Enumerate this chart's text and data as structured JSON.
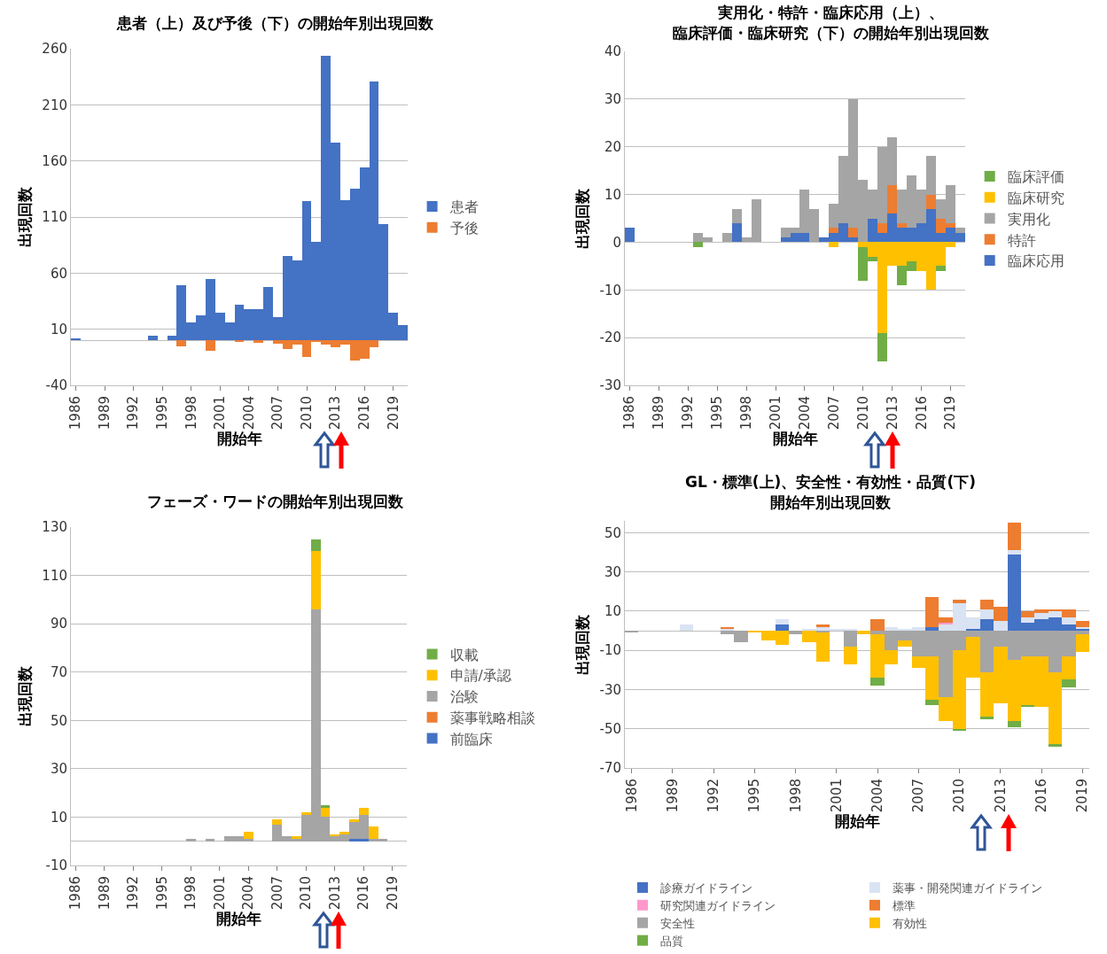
{
  "chart_data": [
    {
      "type": "bar",
      "title": "患者（上）及び予後（下）の開始年別出現回数",
      "xlabel": "開始年",
      "ylabel": "出現回数",
      "stacked": true,
      "grid": "y",
      "legend": "right",
      "categories": [
        "1986",
        null,
        null,
        "1989",
        null,
        null,
        "1992",
        null,
        null,
        "1995",
        null,
        null,
        "1998",
        null,
        null,
        "2001",
        null,
        null,
        "2004",
        null,
        null,
        "2007",
        null,
        null,
        "2010",
        null,
        null,
        "2013",
        null,
        null,
        "2016",
        null,
        null,
        "2019",
        null
      ],
      "ylim": [
        -40,
        260
      ],
      "yticks": [
        -40,
        10,
        60,
        110,
        160,
        210,
        260
      ],
      "series": [
        {
          "name": "予後",
          "color": "#ed7d31",
          "values": [
            0,
            0,
            0,
            0,
            0,
            0,
            0,
            0,
            0,
            0,
            0,
            -5,
            0,
            0,
            -9,
            0,
            0,
            -1,
            0,
            -2,
            0,
            -3,
            -8,
            -4,
            -15,
            -1,
            -4,
            -6,
            -4,
            -18,
            -16,
            -6,
            0,
            0,
            0
          ]
        },
        {
          "name": "患者",
          "color": "#4472c4",
          "values": [
            2,
            0,
            0,
            0,
            0,
            0,
            0,
            0,
            4,
            0,
            4,
            49,
            16,
            22,
            55,
            25,
            16,
            32,
            28,
            28,
            48,
            21,
            75,
            71,
            124,
            88,
            254,
            176,
            125,
            135,
            154,
            231,
            104,
            25,
            14
          ]
        }
      ]
    },
    {
      "type": "bar",
      "title": "実用化・特許・臨床応用（上）、臨床評価・臨床研究（下）の開始年別出現回数",
      "xlabel": "開始年",
      "ylabel": "出現回数",
      "stacked": true,
      "grid": "y",
      "legend": "right",
      "categories": [
        "1986",
        null,
        null,
        "1989",
        null,
        null,
        "1992",
        null,
        null,
        "1995",
        null,
        null,
        "1998",
        null,
        null,
        "2001",
        null,
        null,
        "2004",
        null,
        null,
        "2007",
        null,
        null,
        "2010",
        null,
        null,
        "2013",
        null,
        null,
        "2016",
        null,
        null,
        "2019",
        null
      ],
      "ylim": [
        -30,
        40
      ],
      "yticks": [
        -30,
        -20,
        -10,
        0,
        10,
        20,
        30,
        40
      ],
      "series": [
        {
          "name": "臨床応用",
          "color": "#4472c4",
          "values": [
            3,
            0,
            0,
            0,
            0,
            0,
            0,
            0,
            0,
            0,
            0,
            4,
            0,
            0,
            0,
            0,
            1,
            2,
            2,
            0,
            1,
            2,
            4,
            1,
            0,
            5,
            2,
            6,
            3,
            3,
            4,
            7,
            2,
            3,
            2
          ]
        },
        {
          "name": "特許",
          "color": "#ed7d31",
          "values": [
            0,
            0,
            0,
            0,
            0,
            0,
            0,
            0,
            0,
            0,
            0,
            0,
            0,
            0,
            0,
            0,
            0,
            0,
            0,
            0,
            0,
            1,
            0,
            2,
            0,
            0,
            2,
            6,
            1,
            0,
            0,
            3,
            3,
            1,
            0
          ]
        },
        {
          "name": "実用化",
          "color": "#a5a5a5",
          "values": [
            0,
            0,
            0,
            0,
            0,
            0,
            0,
            2,
            1,
            0,
            2,
            3,
            1,
            9,
            0,
            0,
            2,
            1,
            9,
            7,
            0,
            5,
            14,
            27,
            13,
            6,
            16,
            10,
            7,
            11,
            7,
            8,
            4,
            8,
            1
          ]
        },
        {
          "name": "臨床研究",
          "color": "#ffc000",
          "values": [
            0,
            0,
            0,
            0,
            0,
            0,
            0,
            0,
            0,
            0,
            0,
            0,
            0,
            0,
            0,
            0,
            0,
            0,
            0,
            0,
            0,
            -1,
            0,
            0,
            -1,
            -3,
            -19,
            -5,
            -5,
            -4,
            -6,
            -10,
            -5,
            -1,
            0
          ]
        },
        {
          "name": "臨床評価",
          "color": "#70ad47",
          "values": [
            0,
            0,
            0,
            0,
            0,
            0,
            0,
            -1,
            0,
            0,
            0,
            0,
            0,
            0,
            0,
            0,
            0,
            0,
            0,
            0,
            0,
            0,
            0,
            0,
            -7,
            -1,
            -6,
            0,
            -4,
            -2,
            0,
            0,
            -1,
            0,
            0
          ]
        }
      ]
    },
    {
      "type": "bar",
      "title": "フェーズ・ワードの開始年別出現回数",
      "xlabel": "開始年",
      "ylabel": "出現回数",
      "stacked": true,
      "grid": "y",
      "legend": "right",
      "categories": [
        "1986",
        null,
        null,
        "1989",
        null,
        null,
        "1992",
        null,
        null,
        "1995",
        null,
        null,
        "1998",
        null,
        null,
        "2001",
        null,
        null,
        "2004",
        null,
        null,
        "2007",
        null,
        null,
        "2010",
        null,
        null,
        "2013",
        null,
        null,
        "2016",
        null,
        null,
        "2019",
        null
      ],
      "ylim": [
        -10,
        130
      ],
      "yticks": [
        -10,
        10,
        30,
        50,
        70,
        90,
        110,
        130
      ],
      "series": [
        {
          "name": "前臨床",
          "color": "#4472c4",
          "values": [
            0,
            0,
            0,
            0,
            0,
            0,
            0,
            0,
            0,
            0,
            0,
            0,
            0,
            0,
            0,
            0,
            0,
            0,
            0,
            0,
            0,
            0,
            0,
            0,
            0,
            0,
            0,
            0,
            0,
            1,
            1,
            0,
            0,
            0,
            0
          ]
        },
        {
          "name": "薬事戦略相談",
          "color": "#ed7d31",
          "values": [
            0,
            0,
            0,
            0,
            0,
            0,
            0,
            0,
            0,
            0,
            0,
            0,
            0,
            0,
            0,
            0,
            0,
            0,
            0,
            0,
            0,
            0,
            0,
            0,
            0,
            0,
            0,
            0,
            0,
            0,
            0,
            0,
            0,
            0,
            0
          ]
        },
        {
          "name": "治験",
          "color": "#a5a5a5",
          "values": [
            0,
            0,
            0,
            0,
            0,
            0,
            0,
            0,
            0,
            0,
            0,
            0,
            1,
            0,
            1,
            0,
            2,
            2,
            1,
            0,
            0,
            7,
            2,
            1,
            11,
            96,
            10,
            2,
            3,
            7,
            10,
            1,
            1,
            0,
            0
          ]
        },
        {
          "name": "申請/承認",
          "color": "#ffc000",
          "values": [
            0,
            0,
            0,
            0,
            0,
            0,
            0,
            0,
            0,
            0,
            0,
            0,
            0,
            0,
            0,
            0,
            0,
            0,
            3,
            0,
            0,
            2,
            0,
            1,
            1,
            24,
            4,
            1,
            1,
            1,
            3,
            5,
            0,
            0,
            0
          ]
        },
        {
          "name": "収載",
          "color": "#70ad47",
          "values": [
            0,
            0,
            0,
            0,
            0,
            0,
            0,
            0,
            0,
            0,
            0,
            0,
            0,
            0,
            0,
            0,
            0,
            0,
            0,
            0,
            0,
            0,
            0,
            0,
            0,
            5,
            1,
            0,
            0,
            0,
            0,
            0,
            0,
            0,
            0
          ]
        }
      ]
    },
    {
      "type": "bar",
      "title": "GL・標準(上)、安全性・有効性・品質(下)開始年別出現回数",
      "xlabel": "開始年",
      "ylabel": "出現回数",
      "stacked": true,
      "grid": "y",
      "legend": "bottom",
      "categories": [
        "1986",
        null,
        null,
        "1989",
        null,
        null,
        "1992",
        null,
        null,
        "1995",
        null,
        null,
        "1998",
        null,
        null,
        "2001",
        null,
        null,
        "2004",
        null,
        null,
        "2007",
        null,
        null,
        "2010",
        null,
        null,
        "2013",
        null,
        null,
        "2016",
        null,
        null,
        "2019"
      ],
      "ylim": [
        -70,
        56
      ],
      "yticks": [
        -70,
        -50,
        -30,
        -10,
        10,
        30,
        50
      ],
      "series": [
        {
          "name": "診療ガイドライン",
          "color": "#4472c4",
          "values": [
            0,
            0,
            0,
            0,
            0,
            0,
            0,
            0,
            0,
            0,
            0,
            3,
            0,
            0,
            0,
            0,
            0,
            0,
            0,
            0,
            0,
            0,
            2,
            0,
            0,
            1,
            6,
            0,
            39,
            4,
            6,
            7,
            3,
            1
          ]
        },
        {
          "name": "薬事・開発関連ガイドライン",
          "color": "#dae3f3",
          "values": [
            0,
            0,
            0,
            0,
            3,
            0,
            0,
            1,
            0,
            0,
            0,
            3,
            0,
            1,
            2,
            1,
            1,
            0,
            0,
            2,
            1,
            2,
            0,
            3,
            14,
            6,
            5,
            5,
            2,
            3,
            3,
            3,
            4,
            1
          ]
        },
        {
          "name": "研究関連ガイドライン",
          "color": "#ff99cc",
          "values": [
            0,
            0,
            0,
            0,
            0,
            0,
            0,
            0,
            0,
            0,
            0,
            0,
            0,
            0,
            0,
            0,
            0,
            0,
            0,
            0,
            0,
            0,
            0,
            1,
            0,
            0,
            0,
            0,
            0,
            0,
            0,
            0,
            0,
            0
          ]
        },
        {
          "name": "標準",
          "color": "#ed7d31",
          "values": [
            0,
            0,
            0,
            0,
            0,
            0,
            0,
            1,
            0,
            0,
            0,
            0,
            0,
            0,
            1,
            0,
            0,
            0,
            6,
            0,
            0,
            0,
            15,
            3,
            2,
            0,
            5,
            7,
            14,
            3,
            2,
            1,
            4,
            3
          ]
        },
        {
          "name": "安全性",
          "color": "#a5a5a5",
          "values": [
            -1,
            0,
            0,
            0,
            0,
            0,
            0,
            -2,
            -6,
            0,
            0,
            0,
            -2,
            0,
            -1,
            0,
            -8,
            0,
            -2,
            -10,
            -5,
            -13,
            -13,
            -34,
            -10,
            -3,
            -21,
            -8,
            -15,
            -13,
            -13,
            -21,
            -13,
            -2
          ]
        },
        {
          "name": "有効性",
          "color": "#ffc000",
          "values": [
            0,
            0,
            0,
            0,
            0,
            0,
            0,
            0,
            0,
            -1,
            -5,
            -7,
            0,
            -6,
            -15,
            0,
            -9,
            -2,
            -22,
            -7,
            -3,
            -6,
            -22,
            -12,
            -40,
            -21,
            -23,
            -29,
            -31,
            -25,
            -26,
            -37,
            -12,
            -9
          ]
        },
        {
          "name": "品質",
          "color": "#70ad47",
          "values": [
            0,
            0,
            0,
            0,
            0,
            0,
            0,
            0,
            0,
            0,
            0,
            0,
            0,
            0,
            0,
            0,
            0,
            0,
            -4,
            0,
            0,
            0,
            -3,
            0,
            -1,
            0,
            -1,
            0,
            -3,
            -1,
            0,
            -1,
            -4,
            0
          ]
        }
      ]
    }
  ]
}
